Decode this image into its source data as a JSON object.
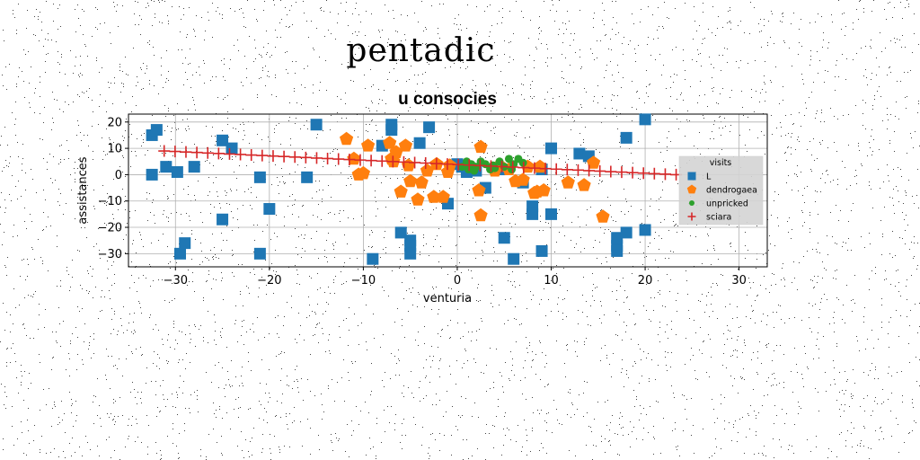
{
  "figure": {
    "suptitle": "pentadic"
  },
  "chart_data": {
    "type": "scatter",
    "title": "u consocies",
    "xlabel": "venturia",
    "ylabel": "assistances",
    "xlim": [
      -35,
      33
    ],
    "ylim": [
      -35,
      23
    ],
    "xticks": [
      -30,
      -20,
      -10,
      0,
      10,
      20,
      30
    ],
    "yticks": [
      -30,
      -20,
      -10,
      0,
      10,
      20
    ],
    "grid": true,
    "legend": {
      "title": "visits",
      "placement": "right"
    },
    "series": [
      {
        "name": "L",
        "marker": "square",
        "color": "#1f77b4",
        "points": [
          [
            -32.5,
            15
          ],
          [
            -32,
            17
          ],
          [
            -32.5,
            0
          ],
          [
            -31,
            3
          ],
          [
            -29.8,
            1
          ],
          [
            -28,
            3
          ],
          [
            -29.5,
            -30
          ],
          [
            -29,
            -26
          ],
          [
            -25,
            -17
          ],
          [
            -25,
            13
          ],
          [
            -24,
            10
          ],
          [
            -21,
            -1
          ],
          [
            -21,
            -30
          ],
          [
            -20,
            -13
          ],
          [
            -16,
            -1
          ],
          [
            -15,
            19
          ],
          [
            -9,
            -32
          ],
          [
            -8,
            11
          ],
          [
            -7,
            17
          ],
          [
            -7,
            19
          ],
          [
            -6,
            -22
          ],
          [
            -5,
            -25
          ],
          [
            -5,
            -27
          ],
          [
            -5,
            -30
          ],
          [
            -4,
            12
          ],
          [
            -3,
            18
          ],
          [
            -1,
            -11
          ],
          [
            0,
            4
          ],
          [
            0.5,
            3
          ],
          [
            1,
            1
          ],
          [
            2,
            1.5
          ],
          [
            3,
            -5
          ],
          [
            4.5,
            2
          ],
          [
            5,
            -24
          ],
          [
            6,
            -32
          ],
          [
            7,
            -3
          ],
          [
            8,
            -12
          ],
          [
            8,
            -15
          ],
          [
            9,
            2
          ],
          [
            9,
            -29
          ],
          [
            10,
            10
          ],
          [
            10,
            -15
          ],
          [
            13,
            8
          ],
          [
            14,
            7
          ],
          [
            17,
            -27
          ],
          [
            17,
            -24
          ],
          [
            17,
            -29
          ],
          [
            18,
            -22
          ],
          [
            18,
            14
          ],
          [
            20,
            -21
          ],
          [
            20,
            21
          ]
        ]
      },
      {
        "name": "dendrogaea",
        "marker": "pentagon",
        "color": "#ff7f0e",
        "points": [
          [
            -11.8,
            13.5
          ],
          [
            -11,
            6
          ],
          [
            -10.5,
            0
          ],
          [
            -10,
            0.5
          ],
          [
            -9.5,
            11
          ],
          [
            -7.2,
            12
          ],
          [
            -7,
            6
          ],
          [
            -6.8,
            5
          ],
          [
            -6.5,
            8.5
          ],
          [
            -6,
            -6.5
          ],
          [
            -5.5,
            11
          ],
          [
            -5.2,
            3.5
          ],
          [
            -5,
            -2.5
          ],
          [
            -4.2,
            -9.5
          ],
          [
            -3.8,
            -3
          ],
          [
            -3.2,
            1.5
          ],
          [
            -2.5,
            -8.5
          ],
          [
            -2.2,
            4
          ],
          [
            -1.5,
            -8.5
          ],
          [
            -1,
            1
          ],
          [
            -0.8,
            3.5
          ],
          [
            2.3,
            -6
          ],
          [
            2.5,
            10.5
          ],
          [
            2.5,
            -15.5
          ],
          [
            4,
            1.5
          ],
          [
            4.5,
            3.5
          ],
          [
            5.5,
            2
          ],
          [
            6.2,
            -2.5
          ],
          [
            7,
            -2
          ],
          [
            7.5,
            3
          ],
          [
            8.2,
            -7
          ],
          [
            8.8,
            3
          ],
          [
            8.5,
            -6.5
          ],
          [
            9.2,
            -6
          ],
          [
            11.8,
            -3
          ],
          [
            13.5,
            -4
          ],
          [
            14.5,
            4.5
          ],
          [
            15.5,
            -16
          ]
        ]
      },
      {
        "name": "unpricked",
        "marker": "circle",
        "color": "#2ca02c",
        "points": [
          [
            0.5,
            3
          ],
          [
            1,
            5
          ],
          [
            1.2,
            2
          ],
          [
            1.5,
            4
          ],
          [
            1.8,
            1.5
          ],
          [
            2,
            3
          ],
          [
            2.5,
            5
          ],
          [
            3,
            4
          ],
          [
            3.5,
            2
          ],
          [
            3.8,
            3.5
          ],
          [
            4,
            2.5
          ],
          [
            4.5,
            5
          ],
          [
            5,
            3
          ],
          [
            5.5,
            6
          ],
          [
            6,
            4
          ],
          [
            6.5,
            6
          ],
          [
            7,
            4.5
          ],
          [
            5.8,
            2
          ]
        ]
      },
      {
        "name": "sciara",
        "marker": "plus",
        "color": "#d62728",
        "x_start": -31.2,
        "x_end": 23.3,
        "y_start": 9,
        "y_end": 0,
        "count": 48
      }
    ]
  }
}
